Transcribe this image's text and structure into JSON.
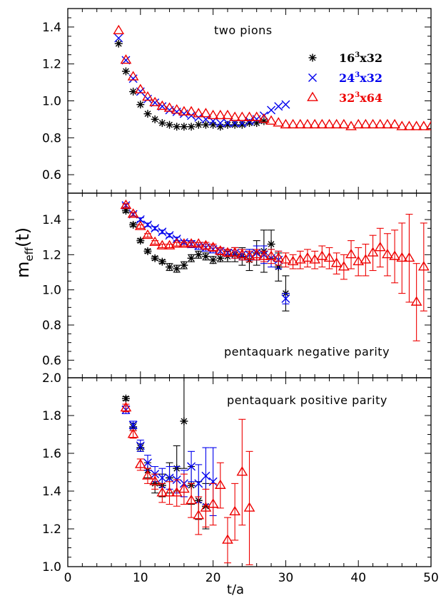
{
  "figure": {
    "ylabel_main": "m",
    "ylabel_sub": "eff",
    "ylabel_tail": "(t)",
    "xlabel": "t/a"
  },
  "legend": [
    {
      "name": "16",
      "sup": "3",
      "rest": "x32",
      "color": "#000000",
      "marker": "asterisk"
    },
    {
      "name": "24",
      "sup": "3",
      "rest": "x32",
      "color": "#0000ee",
      "marker": "cross"
    },
    {
      "name": "32",
      "sup": "3",
      "rest": "x64",
      "color": "#ee0000",
      "marker": "triangle"
    }
  ],
  "chart_data": [
    {
      "type": "scatter",
      "title": "two pions",
      "xlim": [
        0,
        50
      ],
      "ylim": [
        0.5,
        1.5
      ],
      "xticks": [
        "0",
        "10",
        "20",
        "30",
        "40",
        "50"
      ],
      "yticks": [
        "0.6",
        "0.8",
        "1.0",
        "1.2",
        "1.4"
      ],
      "series": [
        {
          "name": "16³x32",
          "x": [
            7,
            8,
            9,
            10,
            11,
            12,
            13,
            14,
            15,
            16,
            17,
            18,
            19,
            20,
            21,
            22,
            23,
            24,
            25,
            26,
            27
          ],
          "y": [
            1.31,
            1.16,
            1.05,
            0.98,
            0.93,
            0.9,
            0.88,
            0.87,
            0.86,
            0.86,
            0.86,
            0.87,
            0.87,
            0.87,
            0.86,
            0.87,
            0.87,
            0.87,
            0.88,
            0.88,
            0.89
          ]
        },
        {
          "name": "24³x32",
          "x": [
            7,
            8,
            9,
            10,
            11,
            12,
            13,
            14,
            15,
            16,
            17,
            18,
            19,
            20,
            21,
            22,
            23,
            24,
            25,
            26,
            27,
            28,
            29,
            30
          ],
          "y": [
            1.34,
            1.22,
            1.12,
            1.05,
            1.01,
            0.99,
            0.97,
            0.95,
            0.94,
            0.93,
            0.92,
            0.91,
            0.9,
            0.89,
            0.88,
            0.88,
            0.88,
            0.88,
            0.89,
            0.9,
            0.92,
            0.95,
            0.97,
            0.98
          ]
        },
        {
          "name": "32³x64",
          "x": [
            7,
            8,
            9,
            10,
            11,
            12,
            13,
            14,
            15,
            16,
            17,
            18,
            19,
            20,
            21,
            22,
            23,
            24,
            25,
            26,
            27,
            28,
            29,
            30,
            31,
            32,
            33,
            34,
            35,
            36,
            37,
            38,
            39,
            40,
            41,
            42,
            43,
            44,
            45,
            46,
            47,
            48,
            49,
            50
          ],
          "y": [
            1.38,
            1.22,
            1.13,
            1.06,
            1.02,
            0.99,
            0.97,
            0.96,
            0.95,
            0.94,
            0.94,
            0.93,
            0.93,
            0.92,
            0.92,
            0.92,
            0.91,
            0.91,
            0.91,
            0.91,
            0.9,
            0.89,
            0.88,
            0.87,
            0.87,
            0.87,
            0.87,
            0.87,
            0.87,
            0.87,
            0.87,
            0.87,
            0.86,
            0.87,
            0.87,
            0.87,
            0.87,
            0.87,
            0.87,
            0.86,
            0.86,
            0.86,
            0.86,
            0.86
          ]
        }
      ]
    },
    {
      "type": "scatter",
      "title": "pentaquark negative parity",
      "xlim": [
        0,
        50
      ],
      "ylim": [
        0.5,
        1.55
      ],
      "xticks": [
        "0",
        "10",
        "20",
        "30",
        "40",
        "50"
      ],
      "yticks": [
        "0.6",
        "0.8",
        "1.0",
        "1.2",
        "1.4"
      ],
      "series": [
        {
          "name": "16³x32",
          "x": [
            8,
            9,
            10,
            11,
            12,
            13,
            14,
            15,
            16,
            17,
            18,
            19,
            20,
            21,
            22,
            23,
            24,
            25,
            26,
            27,
            28,
            29,
            30
          ],
          "y": [
            1.45,
            1.37,
            1.28,
            1.22,
            1.18,
            1.16,
            1.13,
            1.12,
            1.14,
            1.18,
            1.2,
            1.19,
            1.17,
            1.18,
            1.19,
            1.2,
            1.19,
            1.17,
            1.21,
            1.22,
            1.26,
            1.13,
            0.98
          ],
          "err": [
            0.01,
            0.01,
            0.01,
            0.01,
            0.01,
            0.01,
            0.02,
            0.02,
            0.02,
            0.02,
            0.02,
            0.02,
            0.02,
            0.02,
            0.03,
            0.04,
            0.05,
            0.06,
            0.07,
            0.12,
            0.08,
            0.08,
            0.1
          ]
        },
        {
          "name": "24³x32",
          "x": [
            8,
            9,
            10,
            11,
            12,
            13,
            14,
            15,
            16,
            17,
            18,
            19,
            20,
            21,
            22,
            23,
            24,
            25,
            26,
            27,
            28,
            29,
            30
          ],
          "y": [
            1.48,
            1.43,
            1.4,
            1.37,
            1.35,
            1.33,
            1.31,
            1.29,
            1.27,
            1.26,
            1.25,
            1.24,
            1.23,
            1.22,
            1.21,
            1.21,
            1.2,
            1.2,
            1.21,
            1.2,
            1.18,
            1.17,
            0.95
          ],
          "err": [
            0.01,
            0.01,
            0.01,
            0.01,
            0.01,
            0.01,
            0.01,
            0.01,
            0.01,
            0.02,
            0.02,
            0.02,
            0.02,
            0.02,
            0.02,
            0.03,
            0.03,
            0.03,
            0.04,
            0.05,
            0.05,
            0.05,
            0.03
          ]
        },
        {
          "name": "32³x64",
          "x": [
            8,
            9,
            10,
            11,
            12,
            13,
            14,
            15,
            16,
            17,
            18,
            19,
            20,
            21,
            22,
            23,
            24,
            25,
            26,
            27,
            28,
            29,
            30,
            31,
            32,
            33,
            34,
            35,
            36,
            37,
            38,
            39,
            40,
            41,
            42,
            43,
            44,
            45,
            46,
            47,
            48,
            49
          ],
          "y": [
            1.48,
            1.43,
            1.36,
            1.31,
            1.27,
            1.25,
            1.25,
            1.26,
            1.26,
            1.26,
            1.26,
            1.25,
            1.24,
            1.22,
            1.21,
            1.21,
            1.2,
            1.19,
            1.2,
            1.19,
            1.19,
            1.18,
            1.17,
            1.16,
            1.17,
            1.18,
            1.17,
            1.19,
            1.18,
            1.15,
            1.13,
            1.2,
            1.16,
            1.17,
            1.21,
            1.24,
            1.2,
            1.19,
            1.18,
            1.18,
            0.93,
            1.13
          ],
          "err": [
            0.01,
            0.01,
            0.01,
            0.01,
            0.01,
            0.01,
            0.01,
            0.01,
            0.01,
            0.01,
            0.01,
            0.02,
            0.02,
            0.02,
            0.02,
            0.03,
            0.03,
            0.03,
            0.03,
            0.03,
            0.04,
            0.04,
            0.04,
            0.04,
            0.05,
            0.05,
            0.05,
            0.06,
            0.06,
            0.06,
            0.07,
            0.08,
            0.08,
            0.09,
            0.1,
            0.11,
            0.12,
            0.15,
            0.2,
            0.25,
            0.22,
            0.25
          ]
        }
      ]
    },
    {
      "type": "scatter",
      "title": "pentaquark positive parity",
      "xlim": [
        0,
        50
      ],
      "ylim": [
        1.0,
        2.0
      ],
      "xticks": [
        "0",
        "10",
        "20",
        "30",
        "40",
        "50"
      ],
      "yticks": [
        "1.0",
        "1.2",
        "1.4",
        "1.6",
        "1.8",
        "2.0"
      ],
      "series": [
        {
          "name": "16³x32",
          "x": [
            8,
            9,
            10,
            11,
            12,
            13,
            14,
            15,
            16,
            17,
            18,
            19
          ],
          "y": [
            1.89,
            1.74,
            1.63,
            1.51,
            1.44,
            1.43,
            1.47,
            1.52,
            1.77,
            1.43,
            1.35,
            1.32
          ],
          "err": [
            0.01,
            0.02,
            0.02,
            0.04,
            0.05,
            0.06,
            0.08,
            0.12,
            0.25,
            0.1,
            0.1,
            0.12
          ]
        },
        {
          "name": "24³x32",
          "x": [
            8,
            9,
            10,
            11,
            12,
            13,
            14,
            15,
            16,
            17,
            18,
            19,
            20
          ],
          "y": [
            1.83,
            1.75,
            1.64,
            1.55,
            1.49,
            1.47,
            1.47,
            1.46,
            1.44,
            1.53,
            1.44,
            1.48,
            1.45
          ],
          "err": [
            0.02,
            0.02,
            0.03,
            0.04,
            0.04,
            0.05,
            0.06,
            0.07,
            0.07,
            0.08,
            0.1,
            0.15,
            0.18
          ]
        },
        {
          "name": "32³x64",
          "x": [
            8,
            9,
            10,
            11,
            12,
            13,
            14,
            15,
            16,
            17,
            18,
            19,
            20,
            21,
            22,
            23,
            24,
            25
          ],
          "y": [
            1.84,
            1.7,
            1.54,
            1.48,
            1.45,
            1.39,
            1.39,
            1.39,
            1.41,
            1.35,
            1.27,
            1.31,
            1.33,
            1.43,
            1.14,
            1.29,
            1.5,
            1.31
          ],
          "err": [
            0.02,
            0.02,
            0.03,
            0.04,
            0.04,
            0.05,
            0.06,
            0.07,
            0.08,
            0.09,
            0.1,
            0.1,
            0.11,
            0.12,
            0.12,
            0.15,
            0.28,
            0.3
          ]
        }
      ]
    }
  ]
}
